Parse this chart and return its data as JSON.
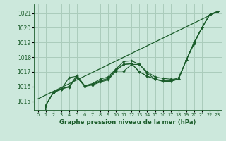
{
  "title": "Graphe pression niveau de la mer (hPa)",
  "background_color": "#cce8dc",
  "grid_color": "#aaccbb",
  "line_color": "#1a5c2a",
  "xlim": [
    -0.5,
    23.5
  ],
  "ylim": [
    1014.4,
    1021.6
  ],
  "yticks": [
    1015,
    1016,
    1017,
    1018,
    1019,
    1020,
    1021
  ],
  "xticks": [
    0,
    1,
    2,
    3,
    4,
    5,
    6,
    7,
    8,
    9,
    10,
    11,
    12,
    13,
    14,
    15,
    16,
    17,
    18,
    19,
    20,
    21,
    22,
    23
  ],
  "series": [
    [
      0,
      1014.7,
      1015.6,
      1015.8,
      1016.6,
      1016.7,
      1016.05,
      1016.15,
      1016.35,
      1016.5,
      1017.15,
      1017.5,
      1017.55,
      1017.0,
      1016.7,
      1016.5,
      1016.35,
      1016.35,
      1016.5,
      1017.8,
      1019.0,
      1020.0,
      1020.9,
      1021.1
    ],
    [
      0,
      1014.7,
      1015.6,
      1015.8,
      1016.0,
      1016.6,
      1016.05,
      1016.15,
      1016.4,
      1016.55,
      1017.1,
      1017.5,
      1017.55,
      1017.0,
      1016.7,
      1016.5,
      1016.35,
      1016.35,
      1016.5,
      1017.8,
      1019.0,
      1020.0,
      1020.9,
      1021.1
    ],
    [
      0,
      1014.7,
      1015.6,
      1015.85,
      1016.0,
      1016.75,
      1016.05,
      1016.2,
      1016.5,
      1016.65,
      1017.2,
      1017.7,
      1017.75,
      1017.5,
      1016.9,
      1016.5,
      1016.4,
      1016.4,
      1016.6,
      1017.8,
      1019.0,
      1020.0,
      1020.9,
      1021.1
    ],
    [
      0,
      1014.7,
      1015.6,
      1015.85,
      1015.95,
      1016.65,
      1016.0,
      1016.1,
      1016.3,
      1016.45,
      1017.05,
      1017.05,
      1017.5,
      1017.5,
      1017.0,
      1016.65,
      1016.55,
      1016.5,
      1016.5,
      1017.8,
      1018.9,
      1020.0,
      1020.9,
      1021.1
    ]
  ],
  "straight_line": [
    [
      0,
      1015.15
    ],
    [
      23,
      1021.1
    ]
  ]
}
